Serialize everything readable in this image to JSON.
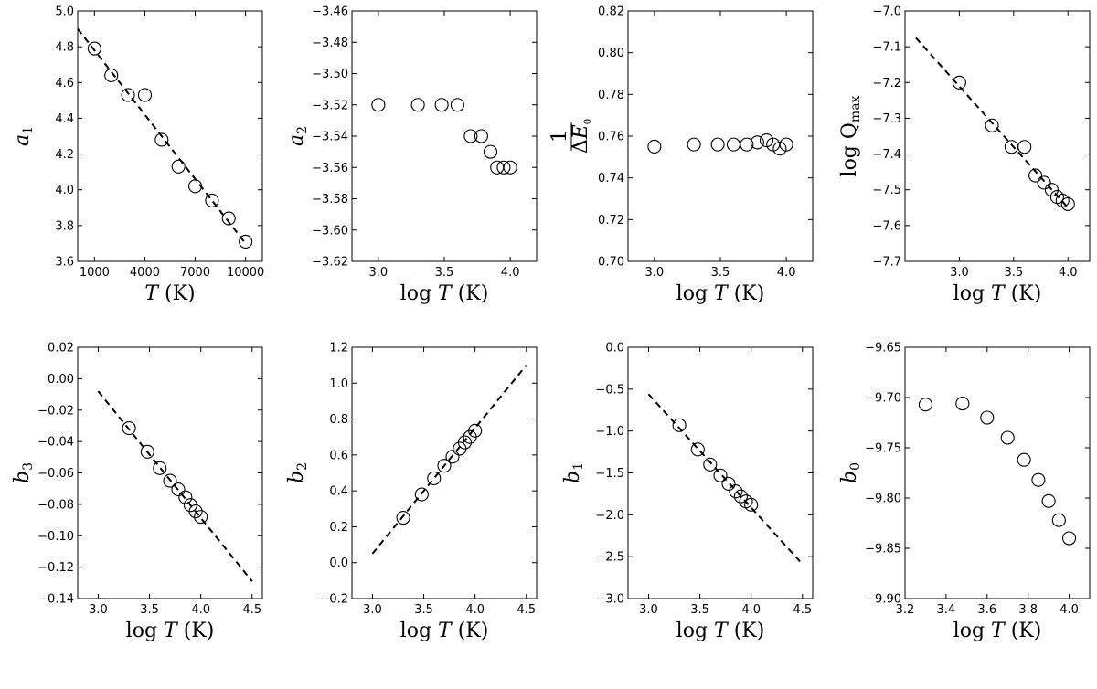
{
  "chart_data": [
    {
      "id": "a1",
      "type": "scatter",
      "xlabel": "T (K)",
      "ylabel": "a1",
      "xlim": [
        0,
        11000
      ],
      "ylim": [
        3.6,
        5.0
      ],
      "xticks": [
        1000,
        4000,
        7000,
        10000
      ],
      "xtick_labels": [
        "1000",
        "4000",
        "7000",
        "10000"
      ],
      "yticks": [
        3.6,
        3.8,
        4.0,
        4.2,
        4.4,
        4.6,
        4.8,
        5.0
      ],
      "ytick_labels": [
        "3.6",
        "3.8",
        "4.0",
        "4.2",
        "4.4",
        "4.6",
        "4.8",
        "5.0"
      ],
      "points": {
        "x": [
          1000,
          2000,
          3000,
          4000,
          5000,
          6000,
          7000,
          8000,
          9000,
          10000
        ],
        "y": [
          4.79,
          4.64,
          4.53,
          4.53,
          4.28,
          4.13,
          4.02,
          3.94,
          3.84,
          3.71
        ]
      },
      "fit_line": {
        "x": [
          0,
          10000
        ],
        "y": [
          4.9,
          3.7
        ]
      }
    },
    {
      "id": "a2",
      "type": "scatter",
      "xlabel": "log T (K)",
      "ylabel": "a2",
      "xlim": [
        2.8,
        4.2
      ],
      "ylim": [
        -3.62,
        -3.46
      ],
      "xticks": [
        3.0,
        3.5,
        4.0
      ],
      "xtick_labels": [
        "3.0",
        "3.5",
        "4.0"
      ],
      "yticks": [
        -3.62,
        -3.6,
        -3.58,
        -3.56,
        -3.54,
        -3.52,
        -3.5,
        -3.48,
        -3.46
      ],
      "ytick_labels": [
        "−3.62",
        "−3.60",
        "−3.58",
        "−3.56",
        "−3.54",
        "−3.52",
        "−3.50",
        "−3.48",
        "−3.46"
      ],
      "points": {
        "x": [
          3.0,
          3.3,
          3.48,
          3.6,
          3.7,
          3.78,
          3.85,
          3.9,
          3.95,
          4.0
        ],
        "y": [
          -3.52,
          -3.52,
          -3.52,
          -3.52,
          -3.54,
          -3.54,
          -3.55,
          -3.56,
          -3.56,
          -3.56
        ]
      }
    },
    {
      "id": "inv_dE0",
      "type": "scatter",
      "xlabel": "log T (K)",
      "ylabel": "1/ΔE0",
      "xlim": [
        2.8,
        4.2
      ],
      "ylim": [
        0.7,
        0.82
      ],
      "xticks": [
        3.0,
        3.5,
        4.0
      ],
      "xtick_labels": [
        "3.0",
        "3.5",
        "4.0"
      ],
      "yticks": [
        0.7,
        0.72,
        0.74,
        0.76,
        0.78,
        0.8,
        0.82
      ],
      "ytick_labels": [
        "0.70",
        "0.72",
        "0.74",
        "0.76",
        "0.78",
        "0.80",
        "0.82"
      ],
      "points": {
        "x": [
          3.0,
          3.3,
          3.48,
          3.6,
          3.7,
          3.78,
          3.85,
          3.9,
          3.95,
          4.0
        ],
        "y": [
          0.755,
          0.756,
          0.756,
          0.756,
          0.756,
          0.757,
          0.758,
          0.756,
          0.754,
          0.756
        ]
      }
    },
    {
      "id": "logQmax",
      "type": "scatter",
      "xlabel": "log T (K)",
      "ylabel": "log Qmax",
      "xlim": [
        2.5,
        4.2
      ],
      "ylim": [
        -7.7,
        -7.0
      ],
      "xticks": [
        3.0,
        3.5,
        4.0
      ],
      "xtick_labels": [
        "3.0",
        "3.5",
        "4.0"
      ],
      "yticks": [
        -7.7,
        -7.6,
        -7.5,
        -7.4,
        -7.3,
        -7.2,
        -7.1,
        -7.0
      ],
      "ytick_labels": [
        "−7.7",
        "−7.6",
        "−7.5",
        "−7.4",
        "−7.3",
        "−7.2",
        "−7.1",
        "−7.0"
      ],
      "points": {
        "x": [
          3.0,
          3.3,
          3.48,
          3.6,
          3.7,
          3.78,
          3.85,
          3.9,
          3.95,
          4.0
        ],
        "y": [
          -7.2,
          -7.32,
          -7.38,
          -7.38,
          -7.46,
          -7.48,
          -7.5,
          -7.52,
          -7.53,
          -7.54
        ]
      },
      "fit_line": {
        "x": [
          2.6,
          4.0
        ],
        "y": [
          -7.075,
          -7.55
        ]
      }
    },
    {
      "id": "b3",
      "type": "scatter",
      "xlabel": "log T (K)",
      "ylabel": "b3",
      "xlim": [
        2.8,
        4.6
      ],
      "ylim": [
        -0.14,
        0.02
      ],
      "xticks": [
        3.0,
        3.5,
        4.0,
        4.5
      ],
      "xtick_labels": [
        "3.0",
        "3.5",
        "4.0",
        "4.5"
      ],
      "yticks": [
        -0.14,
        -0.12,
        -0.1,
        -0.08,
        -0.06,
        -0.04,
        -0.02,
        0.0,
        0.02
      ],
      "ytick_labels": [
        "−0.14",
        "−0.12",
        "−0.10",
        "−0.08",
        "−0.06",
        "−0.04",
        "−0.02",
        "0.00",
        "0.02"
      ],
      "points": {
        "x": [
          3.3,
          3.48,
          3.6,
          3.7,
          3.78,
          3.85,
          3.9,
          3.95,
          4.0
        ],
        "y": [
          -0.0315,
          -0.0465,
          -0.057,
          -0.065,
          -0.0705,
          -0.0755,
          -0.0805,
          -0.0845,
          -0.088
        ]
      },
      "fit_line": {
        "x": [
          3.0,
          4.5
        ],
        "y": [
          -0.008,
          -0.129
        ]
      }
    },
    {
      "id": "b2",
      "type": "scatter",
      "xlabel": "log T (K)",
      "ylabel": "b2",
      "xlim": [
        2.8,
        4.6
      ],
      "ylim": [
        -0.2,
        1.2
      ],
      "xticks": [
        3.0,
        3.5,
        4.0,
        4.5
      ],
      "xtick_labels": [
        "3.0",
        "3.5",
        "4.0",
        "4.5"
      ],
      "yticks": [
        -0.2,
        0.0,
        0.2,
        0.4,
        0.6,
        0.8,
        1.0,
        1.2
      ],
      "ytick_labels": [
        "−0.2",
        "0.0",
        "0.2",
        "0.4",
        "0.6",
        "0.8",
        "1.0",
        "1.2"
      ],
      "points": {
        "x": [
          3.3,
          3.48,
          3.6,
          3.7,
          3.78,
          3.85,
          3.9,
          3.95,
          4.0
        ],
        "y": [
          0.25,
          0.38,
          0.47,
          0.54,
          0.59,
          0.635,
          0.67,
          0.7,
          0.735
        ]
      },
      "fit_line": {
        "x": [
          3.0,
          4.5
        ],
        "y": [
          0.05,
          1.1
        ]
      }
    },
    {
      "id": "b1",
      "type": "scatter",
      "xlabel": "log T (K)",
      "ylabel": "b1",
      "xlim": [
        2.8,
        4.6
      ],
      "ylim": [
        -3.0,
        0.0
      ],
      "xticks": [
        3.0,
        3.5,
        4.0,
        4.5
      ],
      "xtick_labels": [
        "3.0",
        "3.5",
        "4.0",
        "4.5"
      ],
      "yticks": [
        -3.0,
        -2.5,
        -2.0,
        -1.5,
        -1.0,
        -0.5,
        0.0
      ],
      "ytick_labels": [
        "−3.0",
        "−2.5",
        "−2.0",
        "−1.5",
        "−1.0",
        "−0.5",
        "0.0"
      ],
      "points": {
        "x": [
          3.3,
          3.48,
          3.6,
          3.7,
          3.78,
          3.85,
          3.9,
          3.95,
          4.0
        ],
        "y": [
          -0.93,
          -1.22,
          -1.4,
          -1.53,
          -1.63,
          -1.72,
          -1.78,
          -1.84,
          -1.88
        ]
      },
      "fit_line": {
        "x": [
          3.0,
          4.5
        ],
        "y": [
          -0.56,
          -2.59
        ]
      }
    },
    {
      "id": "b0",
      "type": "scatter",
      "xlabel": "log T (K)",
      "ylabel": "b0",
      "xlim": [
        3.2,
        4.1
      ],
      "ylim": [
        -9.9,
        -9.65
      ],
      "xticks": [
        3.2,
        3.4,
        3.6,
        3.8,
        4.0
      ],
      "xtick_labels": [
        "3.2",
        "3.4",
        "3.6",
        "3.8",
        "4.0"
      ],
      "yticks": [
        -9.9,
        -9.85,
        -9.8,
        -9.75,
        -9.7,
        -9.65
      ],
      "ytick_labels": [
        "−9.90",
        "−9.85",
        "−9.80",
        "−9.75",
        "−9.70",
        "−9.65"
      ],
      "points": {
        "x": [
          3.3,
          3.48,
          3.6,
          3.7,
          3.78,
          3.85,
          3.9,
          3.95,
          4.0
        ],
        "y": [
          -9.707,
          -9.706,
          -9.72,
          -9.74,
          -9.762,
          -9.782,
          -9.803,
          -9.822,
          -9.84
        ]
      }
    }
  ]
}
